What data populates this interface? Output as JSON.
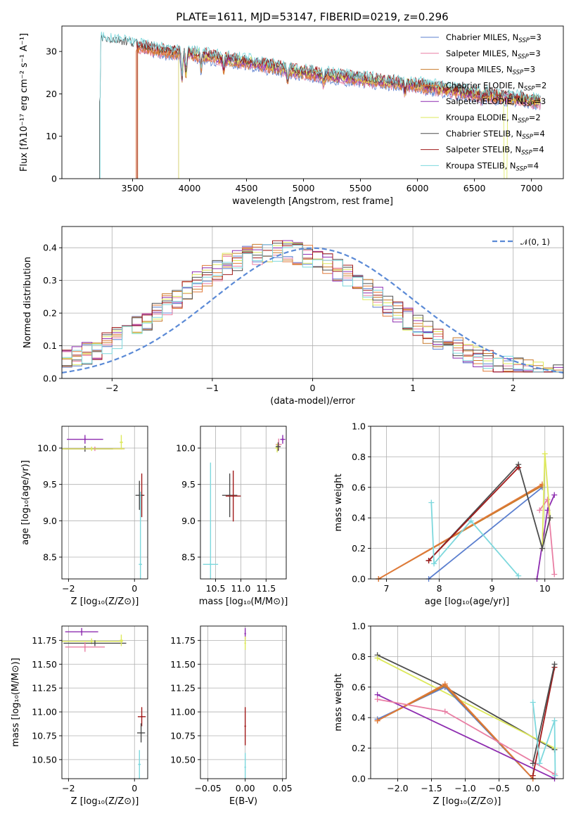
{
  "colors": {
    "chab_miles": "#5b7fcf",
    "salp_miles": "#e97fa4",
    "krou_miles": "#c97a2a",
    "chab_elodie": "#e07a3a",
    "salp_elodie": "#8e2db0",
    "krou_elodie": "#dde85a",
    "chab_stelib": "#4d4d4d",
    "salp_stelib": "#a11a1a",
    "krou_stelib": "#7dd8dd",
    "normal": "#5b8ad6"
  },
  "chart_data": [
    {
      "id": "spectrum",
      "type": "line",
      "title": "PLATE=1611, MJD=53147, FIBERID=0219, z=0.296",
      "xlabel": "wavelength [Angstrom, rest frame]",
      "ylabel": "Flux [fλ10⁻¹⁷ erg cm⁻² s⁻¹ A⁻¹]",
      "xlim": [
        2880,
        7280
      ],
      "ylim": [
        0,
        36
      ],
      "xticks": [
        "3500",
        "4000",
        "4500",
        "5000",
        "5500",
        "6000",
        "6500",
        "7000"
      ],
      "yticks": [
        "0",
        "10",
        "20",
        "30"
      ],
      "grid": false,
      "legend_position": "top-right",
      "legend": [
        {
          "key": "chab_miles",
          "label": "Chabrier MILES, N",
          "sub": "SSP",
          "rest": "=3"
        },
        {
          "key": "salp_miles",
          "label": "Salpeter MILES, N",
          "sub": "SSP",
          "rest": "=3"
        },
        {
          "key": "krou_miles",
          "label": "Kroupa MILES, N",
          "sub": "SSP",
          "rest": "=3"
        },
        {
          "key": "chab_elodie",
          "label": "Chabrier ELODIE, N",
          "sub": "SSP",
          "rest": "=2"
        },
        {
          "key": "salp_elodie",
          "label": "Salpeter ELODIE, N",
          "sub": "SSP",
          "rest": "=3"
        },
        {
          "key": "krou_elodie",
          "label": "Kroupa ELODIE, N",
          "sub": "SSP",
          "rest": "=2"
        },
        {
          "key": "chab_stelib",
          "label": "Chabrier STELIB, N",
          "sub": "SSP",
          "rest": "=4"
        },
        {
          "key": "salp_stelib",
          "label": "Salpeter STELIB, N",
          "sub": "SSP",
          "rest": "=4"
        },
        {
          "key": "krou_stelib",
          "label": "Kroupa STELIB, N",
          "sub": "SSP",
          "rest": "=4"
        }
      ],
      "continuum": [
        [
          3220,
          32.5
        ],
        [
          3400,
          32.0
        ],
        [
          3800,
          30.0
        ],
        [
          4000,
          29.5
        ],
        [
          4500,
          27.5
        ],
        [
          5000,
          25.0
        ],
        [
          5500,
          23.5
        ],
        [
          6000,
          22.0
        ],
        [
          6500,
          20.0
        ],
        [
          7000,
          18.5
        ],
        [
          7080,
          18.0
        ]
      ],
      "series": [
        {
          "key": "chab_miles",
          "start": 3540
        },
        {
          "key": "salp_miles",
          "start": 3540
        },
        {
          "key": "krou_miles",
          "start": 3545
        },
        {
          "key": "chab_elodie",
          "start": 3530
        },
        {
          "key": "salp_elodie",
          "start": 3905
        },
        {
          "key": "krou_elodie",
          "start": 3905
        },
        {
          "key": "chab_stelib",
          "start": 3210
        },
        {
          "key": "salp_stelib",
          "start": 3540
        },
        {
          "key": "krou_stelib",
          "start": 3215
        }
      ]
    },
    {
      "id": "residuals",
      "type": "line",
      "xlabel": "(data-model)/error",
      "ylabel": "Normed distribution",
      "xlim": [
        -2.5,
        2.5
      ],
      "ylim": [
        0,
        0.465
      ],
      "xticks": [
        "−2",
        "−1",
        "0",
        "1",
        "2"
      ],
      "yticks": [
        "0.0",
        "0.1",
        "0.2",
        "0.3",
        "0.4"
      ],
      "grid": true,
      "legend_position": "top-right",
      "normal_label": "𝒩(0, 1)"
    },
    {
      "id": "age_vs_Z",
      "type": "scatter",
      "xlabel": "Z [log₁₀(Z/Z⊙)]",
      "ylabel": "age  [log₁₀(age/yr)]",
      "xlim": [
        -2.2,
        0.4
      ],
      "ylim": [
        8.2,
        10.3
      ],
      "xticks": [
        "−2",
        "0"
      ],
      "yticks": [
        "8.5",
        "9.0",
        "9.5",
        "10.0"
      ],
      "grid": true,
      "points": [
        {
          "key": "salp_elodie",
          "x": -1.5,
          "y": 10.12,
          "ex": 0.55,
          "ey": 0.06
        },
        {
          "key": "salp_miles",
          "x": -1.2,
          "y": 9.99,
          "ex": 0.9,
          "ey": 0.03
        },
        {
          "key": "chab_stelib",
          "x": -1.5,
          "y": 9.99,
          "ex": 0.85,
          "ey": 0.04
        },
        {
          "key": "krou_elodie",
          "x": -1.3,
          "y": 9.99,
          "ex": 1.0,
          "ey": 0.03
        },
        {
          "key": "krou_elodie",
          "x": -0.4,
          "y": 10.08,
          "ex": 0.05,
          "ey": 0.1
        },
        {
          "key": "salp_stelib",
          "x": 0.22,
          "y": 9.35,
          "ex": 0.08,
          "ey": 0.3
        },
        {
          "key": "chab_stelib",
          "x": 0.15,
          "y": 9.35,
          "ex": 0.12,
          "ey": 0.2
        },
        {
          "key": "krou_stelib",
          "x": 0.18,
          "y": 8.4,
          "ex": 0.05,
          "ey": 1.0
        }
      ]
    },
    {
      "id": "age_vs_mass",
      "type": "scatter",
      "xlabel": "mass [log₁₀(M/M⊙)]",
      "xlim": [
        10.2,
        11.9
      ],
      "ylim": [
        8.2,
        10.3
      ],
      "xticks": [
        "10.5",
        "11.0",
        "11.5"
      ],
      "yticks": [
        "8.5",
        "9.0",
        "9.5",
        "10.0"
      ],
      "grid": true,
      "points": [
        {
          "key": "salp_elodie",
          "x": 11.83,
          "y": 10.12,
          "ex": 0.05,
          "ey": 0.06
        },
        {
          "key": "salp_miles",
          "x": 11.75,
          "y": 10.05,
          "ex": 0.06,
          "ey": 0.08
        },
        {
          "key": "krou_elodie",
          "x": 11.72,
          "y": 10.0,
          "ex": 0.04,
          "ey": 0.06
        },
        {
          "key": "chab_stelib",
          "x": 11.74,
          "y": 10.02,
          "ex": 0.05,
          "ey": 0.06
        },
        {
          "key": "chab_stelib",
          "x": 10.78,
          "y": 9.35,
          "ex": 0.15,
          "ey": 0.3
        },
        {
          "key": "salp_stelib",
          "x": 10.85,
          "y": 9.34,
          "ex": 0.15,
          "ey": 0.35
        },
        {
          "key": "krou_stelib",
          "x": 10.4,
          "y": 8.4,
          "ex": 0.15,
          "ey": 1.4
        }
      ]
    },
    {
      "id": "weight_vs_age",
      "type": "line",
      "xlabel": "age  [log₁₀(age/yr)]",
      "ylabel": "mass weight",
      "xlim": [
        6.7,
        10.35
      ],
      "ylim": [
        0,
        1.0
      ],
      "xticks": [
        "7",
        "8",
        "9",
        "10"
      ],
      "yticks": [
        "0.0",
        "0.2",
        "0.4",
        "0.6",
        "0.8",
        "1.0"
      ],
      "grid": true,
      "series": [
        {
          "key": "chab_miles",
          "x": [
            7.8,
            9.95
          ],
          "y": [
            0.0,
            0.6
          ]
        },
        {
          "key": "krou_miles",
          "x": [
            6.85,
            9.95
          ],
          "y": [
            0.0,
            0.61
          ]
        },
        {
          "key": "chab_elodie",
          "x": [
            6.85,
            9.95
          ],
          "y": [
            0.0,
            0.62
          ]
        },
        {
          "key": "salp_miles",
          "x": [
            9.9,
            10.05,
            10.18
          ],
          "y": [
            0.45,
            0.52,
            0.03
          ]
        },
        {
          "key": "salp_elodie",
          "x": [
            9.85,
            10.05,
            10.18
          ],
          "y": [
            0.0,
            0.45,
            0.55
          ]
        },
        {
          "key": "krou_elodie",
          "x": [
            9.95,
            10.0,
            10.1
          ],
          "y": [
            0.2,
            0.82,
            0.4
          ]
        },
        {
          "key": "chab_stelib",
          "x": [
            7.8,
            9.5,
            9.95,
            10.1
          ],
          "y": [
            0.12,
            0.75,
            0.2,
            0.4
          ]
        },
        {
          "key": "salp_stelib",
          "x": [
            7.8,
            9.5
          ],
          "y": [
            0.12,
            0.73
          ]
        },
        {
          "key": "krou_stelib",
          "x": [
            7.85,
            7.9,
            8.6,
            9.5
          ],
          "y": [
            0.5,
            0.1,
            0.38,
            0.02
          ]
        }
      ]
    },
    {
      "id": "mass_vs_Z",
      "type": "scatter",
      "xlabel": "Z [log₁₀(Z/Z⊙)]",
      "ylabel": "mass [log₁₀(M/M⊙)]",
      "xlim": [
        -2.2,
        0.4
      ],
      "ylim": [
        10.3,
        11.9
      ],
      "xticks": [
        "−2",
        "0"
      ],
      "yticks": [
        "10.50",
        "10.75",
        "11.00",
        "11.25",
        "11.50",
        "11.75"
      ],
      "grid": true,
      "points": [
        {
          "key": "salp_elodie",
          "x": -1.6,
          "y": 11.84,
          "ex": 0.5,
          "ey": 0.04
        },
        {
          "key": "krou_elodie",
          "x": -1.3,
          "y": 11.74,
          "ex": 0.95,
          "ey": 0.03
        },
        {
          "key": "chab_stelib",
          "x": -1.2,
          "y": 11.72,
          "ex": 0.95,
          "ey": 0.03
        },
        {
          "key": "salp_miles",
          "x": -1.5,
          "y": 11.68,
          "ex": 0.6,
          "ey": 0.05
        },
        {
          "key": "krou_elodie",
          "x": -0.4,
          "y": 11.75,
          "ex": 0.05,
          "ey": 0.06
        },
        {
          "key": "salp_stelib",
          "x": 0.22,
          "y": 10.95,
          "ex": 0.12,
          "ey": 0.1
        },
        {
          "key": "chab_stelib",
          "x": 0.2,
          "y": 10.78,
          "ex": 0.12,
          "ey": 0.1
        },
        {
          "key": "krou_stelib",
          "x": 0.15,
          "y": 10.45,
          "ex": 0.04,
          "ey": 0.15
        }
      ]
    },
    {
      "id": "mass_vs_ebv",
      "type": "scatter",
      "xlabel": "E(B-V)",
      "xlim": [
        -0.06,
        0.055
      ],
      "ylim": [
        10.3,
        11.9
      ],
      "xticks": [
        "−0.05",
        "0.00",
        "0.05"
      ],
      "yticks": [
        "10.50",
        "10.75",
        "11.00",
        "11.25",
        "11.50",
        "11.75"
      ],
      "grid": true,
      "points": [
        {
          "key": "salp_elodie",
          "x": 0.0,
          "y": 11.82,
          "ex": 0,
          "ey": 0.06
        },
        {
          "key": "krou_elodie",
          "x": 0.0,
          "y": 11.72,
          "ex": 0,
          "ey": 0.07
        },
        {
          "key": "salp_stelib",
          "x": 0.0,
          "y": 10.85,
          "ex": 0,
          "ey": 0.2
        },
        {
          "key": "krou_stelib",
          "x": 0.0,
          "y": 10.42,
          "ex": 0,
          "ey": 0.15
        }
      ]
    },
    {
      "id": "weight_vs_Z",
      "type": "line",
      "xlabel": "Z [log₁₀(Z/Z⊙)]",
      "ylabel": "mass weight",
      "xlim": [
        -2.4,
        0.45
      ],
      "ylim": [
        0,
        1.0
      ],
      "xticks": [
        "−2.0",
        "−1.5",
        "−1.0",
        "−0.5",
        "0.0"
      ],
      "yticks": [
        "0.0",
        "0.2",
        "0.4",
        "0.6",
        "0.8",
        "1.0"
      ],
      "grid": true,
      "series": [
        {
          "key": "chab_stelib",
          "x": [
            -2.3,
            -1.3,
            0.32
          ],
          "y": [
            0.81,
            0.6,
            0.19
          ]
        },
        {
          "key": "krou_elodie",
          "x": [
            -2.3,
            0.32
          ],
          "y": [
            0.79,
            0.2
          ]
        },
        {
          "key": "chab_miles",
          "x": [
            -2.3,
            -1.3,
            0.0
          ],
          "y": [
            0.39,
            0.6,
            0.0
          ]
        },
        {
          "key": "krou_miles",
          "x": [
            -2.3,
            -1.3,
            0.0
          ],
          "y": [
            0.38,
            0.61,
            0.0
          ]
        },
        {
          "key": "chab_elodie",
          "x": [
            -2.3,
            -1.3,
            0.0
          ],
          "y": [
            0.38,
            0.62,
            0.0
          ]
        },
        {
          "key": "salp_elodie",
          "x": [
            -2.3,
            0.32
          ],
          "y": [
            0.55,
            0.0
          ]
        },
        {
          "key": "salp_miles",
          "x": [
            -2.3,
            -1.3,
            0.32
          ],
          "y": [
            0.52,
            0.44,
            0.03
          ]
        },
        {
          "key": "salp_stelib",
          "x": [
            0.0,
            0.32
          ],
          "y": [
            0.02,
            0.73
          ]
        },
        {
          "key": "chab_stelib",
          "x": [
            0.0,
            0.32
          ],
          "y": [
            0.1,
            0.75
          ]
        },
        {
          "key": "krou_stelib",
          "x": [
            0.0,
            0.1,
            0.32,
            0.33
          ],
          "y": [
            0.5,
            0.1,
            0.38,
            0.02
          ]
        }
      ]
    }
  ]
}
